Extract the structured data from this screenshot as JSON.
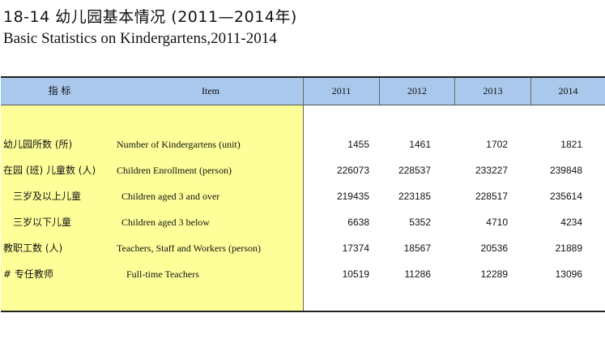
{
  "title_cn": "18-14   幼儿园基本情况 (2011—2014年)",
  "title_en": "Basic Statistics on Kindergartens,2011-2014",
  "header": {
    "indicator_cn": "指    标",
    "item_en": "Item",
    "years": [
      "2011",
      "2012",
      "2013",
      "2014"
    ]
  },
  "rows": [
    {
      "cn": "幼儿园所数 (所)",
      "en": "Number of Kindergartens (unit)",
      "values": [
        "1455",
        "1461",
        "1702",
        "1821"
      ]
    },
    {
      "cn": "在园 (班) 儿童数 (人)",
      "en": "Children Enrollment (person)",
      "values": [
        "226073",
        "228537",
        "233227",
        "239848"
      ]
    },
    {
      "cn": "三岁及以上儿童",
      "en": "Children aged 3 and over",
      "values": [
        "219435",
        "223185",
        "228517",
        "235614"
      ]
    },
    {
      "cn": "三岁以下儿童",
      "en": "Children aged 3 below",
      "values": [
        "6638",
        "5352",
        "4710",
        "4234"
      ]
    },
    {
      "cn": "教职工数 (人)",
      "en": "Teachers, Staff and Workers (person)",
      "values": [
        "17374",
        "18567",
        "20536",
        "21889"
      ]
    },
    {
      "cn": "#  专任教师",
      "en": "Full-time Teachers",
      "values": [
        "10519",
        "11286",
        "12289",
        "13096"
      ]
    }
  ]
}
